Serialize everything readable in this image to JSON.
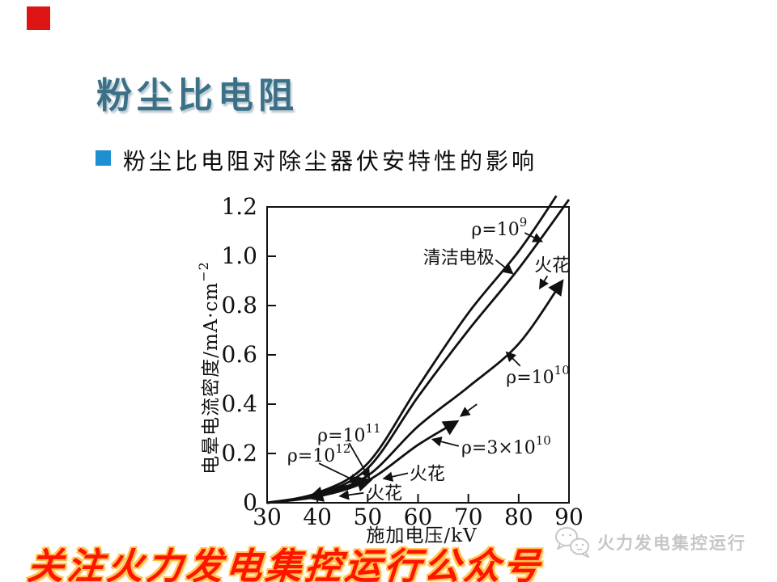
{
  "slide": {
    "title": "粉尘比电阻",
    "bullet_text": "粉尘比电阻对除尘器伏安特性的影响",
    "banner_text": "关注火力发电集控运行公众号",
    "watermark_text": "火力发电集控运行",
    "colors": {
      "title": "#3b7086",
      "bullet_marker": "#1e8fd0",
      "corner_square": "#dd1414",
      "banner_red": "#ff1400",
      "banner_glow": "#ffc14d",
      "watermark_gray": "#c6c6c6",
      "ink": "#111111"
    }
  },
  "chart_data": {
    "type": "line",
    "title": "",
    "xlabel": {
      "text": "施加电压/kV"
    },
    "ylabel": {
      "base": "电晕电流密度/mA·cm",
      "sup": "−2"
    },
    "xlim": [
      30,
      90
    ],
    "ylim": [
      0,
      1.2
    ],
    "xticks": [
      "30",
      "40",
      "50",
      "60",
      "70",
      "80",
      "90"
    ],
    "yticks": [
      "0",
      "0.2",
      "0.4",
      "0.6",
      "0.8",
      "1.0",
      "1.2"
    ],
    "grid": false,
    "legend": "none (curves labeled by arrows on plot)",
    "series": [
      {
        "id": "clean",
        "name": "清洁电极",
        "arrow_end": false,
        "points": [
          [
            30,
            0
          ],
          [
            40,
            0.04
          ],
          [
            50,
            0.16
          ],
          [
            60,
            0.47
          ],
          [
            70,
            0.77
          ],
          [
            80,
            1.02
          ],
          [
            87.5,
            1.245
          ]
        ]
      },
      {
        "id": "rho9",
        "name": "ρ=10⁹",
        "arrow_end": false,
        "points": [
          [
            30,
            0
          ],
          [
            40,
            0.035
          ],
          [
            50,
            0.14
          ],
          [
            60,
            0.43
          ],
          [
            70,
            0.7
          ],
          [
            80,
            0.95
          ],
          [
            90,
            1.23
          ]
        ]
      },
      {
        "id": "rho10",
        "name": "ρ=10¹⁰",
        "arrow_end": true,
        "points": [
          [
            30,
            0
          ],
          [
            40,
            0.03
          ],
          [
            50,
            0.11
          ],
          [
            60,
            0.31
          ],
          [
            70,
            0.47
          ],
          [
            80,
            0.645
          ],
          [
            88.7,
            0.9
          ]
        ]
      },
      {
        "id": "rho3e10",
        "name": "ρ=3×10¹⁰",
        "arrow_end": true,
        "points": [
          [
            30,
            0
          ],
          [
            40,
            0.025
          ],
          [
            50,
            0.09
          ],
          [
            60,
            0.235
          ],
          [
            67.8,
            0.33
          ]
        ]
      },
      {
        "id": "rho11",
        "name": "ρ=10¹¹",
        "arrow_end": true,
        "points": [
          [
            30,
            0
          ],
          [
            36,
            0.015
          ],
          [
            42,
            0.045
          ],
          [
            47,
            0.07
          ],
          [
            50.6,
            0.092
          ]
        ]
      },
      {
        "id": "rho12",
        "name": "ρ=10¹²",
        "arrow_end": true,
        "points": [
          [
            30,
            0
          ],
          [
            36,
            0.015
          ],
          [
            42,
            0.05
          ],
          [
            47.7,
            0.075
          ],
          [
            44,
            0.05
          ],
          [
            40.5,
            0.032
          ],
          [
            38.4,
            0.02
          ]
        ]
      }
    ],
    "annotations": [
      {
        "base": "ρ=10",
        "sup": "9",
        "lx": 70.6,
        "ly": 1.085,
        "arrow": [
          [
            81.2,
            1.095
          ],
          [
            84.6,
            1.06
          ]
        ]
      },
      {
        "base": "清洁电极",
        "sup": "",
        "lx": 61.0,
        "ly": 0.97,
        "arrow": [
          [
            75.4,
            0.985
          ],
          [
            78.8,
            0.93
          ]
        ]
      },
      {
        "base": "火花",
        "sup": "",
        "lx": 83.1,
        "ly": 0.94,
        "arrow": [
          [
            85.7,
            0.92
          ],
          [
            84.2,
            0.87
          ]
        ]
      },
      {
        "base": "ρ=10",
        "sup": "10",
        "lx": 77.5,
        "ly": 0.485,
        "arrow": [
          [
            80.3,
            0.555
          ],
          [
            77.6,
            0.61
          ]
        ]
      },
      {
        "base": "ρ=3×10",
        "sup": "10",
        "lx": 68.6,
        "ly": 0.2,
        "arrow": [
          [
            68.1,
            0.23
          ],
          [
            62.9,
            0.257
          ]
        ]
      },
      {
        "base": "",
        "sup": "",
        "lx": null,
        "ly": null,
        "arrow": [
          [
            71.7,
            0.4
          ],
          [
            68.5,
            0.352
          ]
        ]
      },
      {
        "base": "ρ=10",
        "sup": "11",
        "lx": 40.0,
        "ly": 0.25,
        "arrow": [
          [
            46.3,
            0.242
          ],
          [
            50.3,
            0.1
          ]
        ]
      },
      {
        "base": "ρ=10",
        "sup": "12",
        "lx": 34.0,
        "ly": 0.168,
        "arrow": [
          [
            40.3,
            0.16
          ],
          [
            48.1,
            0.083
          ]
        ]
      },
      {
        "base": "火花",
        "sup": "",
        "lx": 58.3,
        "ly": 0.094,
        "arrow": [
          [
            58.0,
            0.12
          ],
          [
            53.2,
            0.098
          ]
        ]
      },
      {
        "base": "火花",
        "sup": "",
        "lx": 49.8,
        "ly": 0.015,
        "arrow": [
          [
            49.2,
            0.04
          ],
          [
            44.5,
            0.027
          ]
        ]
      }
    ]
  }
}
